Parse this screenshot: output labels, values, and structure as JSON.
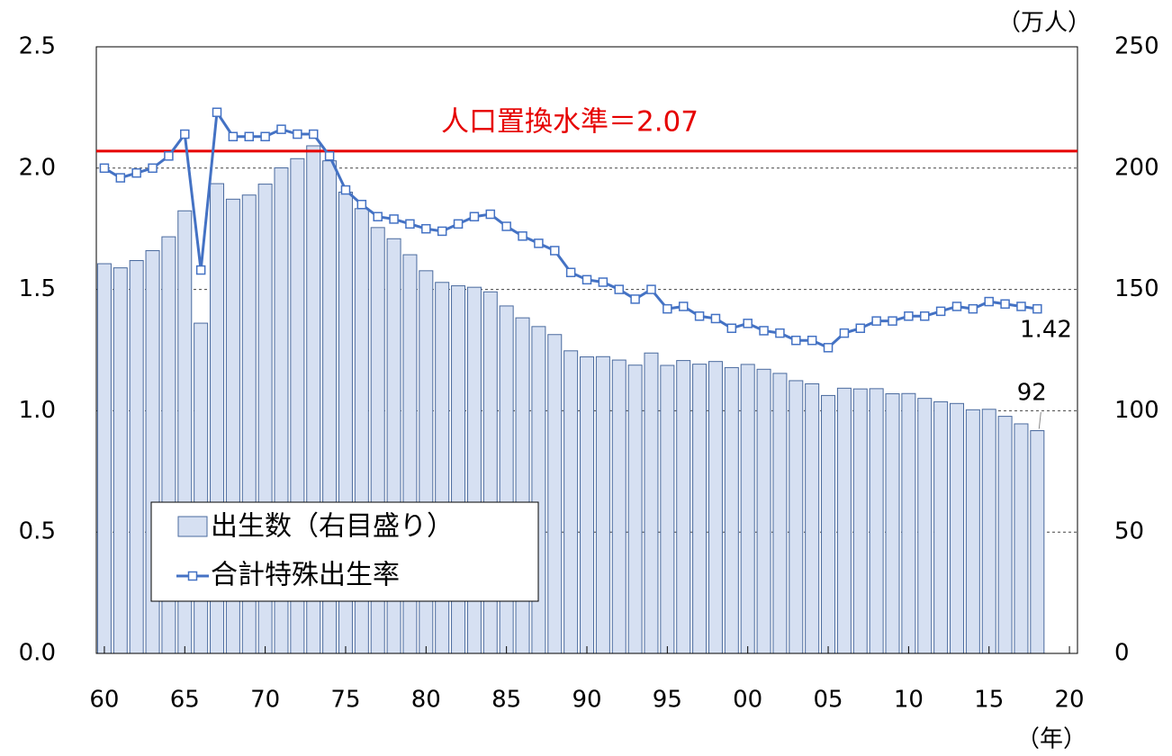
{
  "chart_data": {
    "type": "bar_line",
    "categories": [
      "60",
      null,
      null,
      null,
      null,
      "65",
      null,
      null,
      null,
      null,
      "70",
      null,
      null,
      null,
      null,
      "75",
      null,
      null,
      null,
      null,
      "80",
      null,
      null,
      null,
      null,
      "85",
      null,
      null,
      null,
      null,
      "90",
      null,
      null,
      null,
      null,
      "95",
      null,
      null,
      null,
      null,
      "00",
      null,
      null,
      null,
      null,
      "05",
      null,
      null,
      null,
      null,
      "10",
      null,
      null,
      null,
      null,
      "15",
      null,
      null,
      null,
      null,
      "20"
    ],
    "x_label": "（年）",
    "y2_label": "（万人）",
    "ylim": [
      0,
      2.5
    ],
    "yticks": [
      {
        "value": 0,
        "label": "0.0"
      },
      0.5,
      {
        "value": 1,
        "label": "1.0"
      },
      1.5,
      {
        "value": 2,
        "label": "2.0"
      },
      2.5
    ],
    "y2lim": [
      0,
      250
    ],
    "y2ticks": [
      0,
      50,
      100,
      150,
      200,
      250
    ],
    "grid": true,
    "legend": "bottom-left",
    "reference_line": {
      "value": 2.07,
      "label": "人口置換水準＝2.07",
      "color": "#e60000"
    },
    "series": [
      {
        "name": "出生数（右目盛り）",
        "type": "bar",
        "axis": "y2",
        "color": "#d6e0f2",
        "edge_color": "#4a6a9e",
        "values": [
          160.6,
          158.9,
          161.9,
          166.0,
          171.7,
          182.4,
          136.1,
          193.6,
          187.2,
          188.9,
          193.4,
          200.1,
          203.9,
          209.2,
          203.0,
          190.1,
          183.3,
          175.5,
          170.9,
          164.3,
          157.7,
          152.9,
          151.5,
          150.9,
          149.0,
          143.2,
          138.3,
          134.7,
          131.4,
          124.7,
          122.2,
          122.3,
          120.9,
          118.8,
          123.8,
          118.7,
          120.7,
          119.2,
          120.3,
          117.8,
          119.1,
          117.1,
          115.4,
          112.4,
          111.1,
          106.3,
          109.3,
          109.0,
          109.1,
          107.0,
          107.1,
          105.1,
          103.7,
          103.0,
          100.4,
          100.6,
          97.7,
          94.6,
          91.8,
          null,
          null
        ],
        "value_labels": [
          null,
          null,
          null,
          null,
          null,
          null,
          null,
          null,
          null,
          null,
          null,
          null,
          null,
          null,
          null,
          null,
          null,
          null,
          null,
          null,
          null,
          null,
          null,
          null,
          null,
          null,
          null,
          null,
          null,
          null,
          null,
          null,
          null,
          null,
          null,
          null,
          null,
          null,
          null,
          null,
          null,
          null,
          null,
          null,
          null,
          null,
          null,
          null,
          null,
          null,
          null,
          null,
          null,
          null,
          null,
          null,
          null,
          null,
          "92",
          null,
          null
        ]
      },
      {
        "name": "合計特殊出生率",
        "type": "line",
        "color": "#4472c4",
        "values": [
          2.0,
          1.96,
          1.98,
          2.0,
          2.05,
          2.14,
          1.58,
          2.23,
          2.13,
          2.13,
          2.13,
          2.16,
          2.14,
          2.14,
          2.05,
          1.91,
          1.85,
          1.8,
          1.79,
          1.77,
          1.75,
          1.74,
          1.77,
          1.8,
          1.81,
          1.76,
          1.72,
          1.69,
          1.66,
          1.57,
          1.54,
          1.53,
          1.5,
          1.46,
          1.5,
          1.42,
          1.43,
          1.39,
          1.38,
          1.34,
          1.36,
          1.33,
          1.32,
          1.29,
          1.29,
          1.26,
          1.32,
          1.34,
          1.37,
          1.37,
          1.39,
          1.39,
          1.41,
          1.43,
          1.42,
          1.45,
          1.44,
          1.43,
          1.42,
          null,
          null
        ]
      }
    ]
  }
}
